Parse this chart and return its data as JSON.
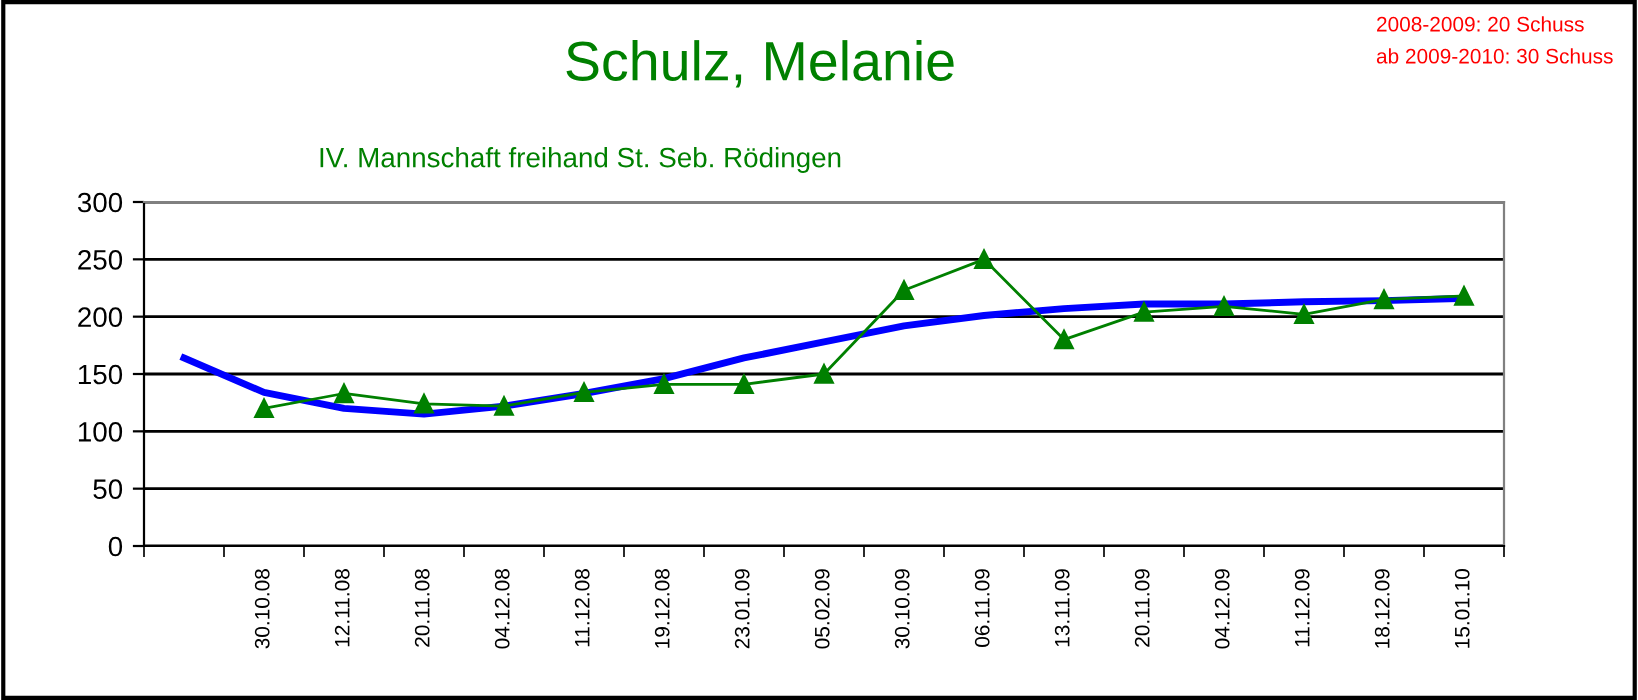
{
  "chart_data": {
    "type": "line",
    "title": "Schulz, Melanie",
    "subtitle": "IV. Mannschaft freihand St. Seb. Rödingen",
    "annotations": [
      "2008-2009: 20 Schuss",
      "ab 2009-2010: 30 Schuss"
    ],
    "categories": [
      null,
      "30.10.08",
      "12.11.08",
      "20.11.08",
      "04.12.08",
      "11.12.08",
      "19.12.08",
      "23.01.09",
      "05.02.09",
      "30.10.09",
      "06.11.09",
      "13.11.09",
      "20.11.09",
      "04.12.09",
      "11.12.09",
      "18.12.09",
      "15.01.10"
    ],
    "series": [
      {
        "color": "#008000",
        "marker": "triangle",
        "values": [
          null,
          120,
          133,
          124,
          122,
          134,
          141,
          141,
          150,
          223,
          250,
          180,
          204,
          209,
          202,
          215,
          218
        ]
      },
      {
        "color": "#0000ff",
        "marker": "none",
        "values": [
          164,
          134,
          120,
          115,
          122,
          133,
          146,
          164,
          178,
          192,
          201,
          207,
          211,
          211,
          213,
          214,
          216
        ]
      }
    ],
    "ylim": [
      0,
      300
    ],
    "yticks": [
      0,
      50,
      100,
      150,
      200,
      250,
      300
    ],
    "grid": "y",
    "legend": false
  }
}
